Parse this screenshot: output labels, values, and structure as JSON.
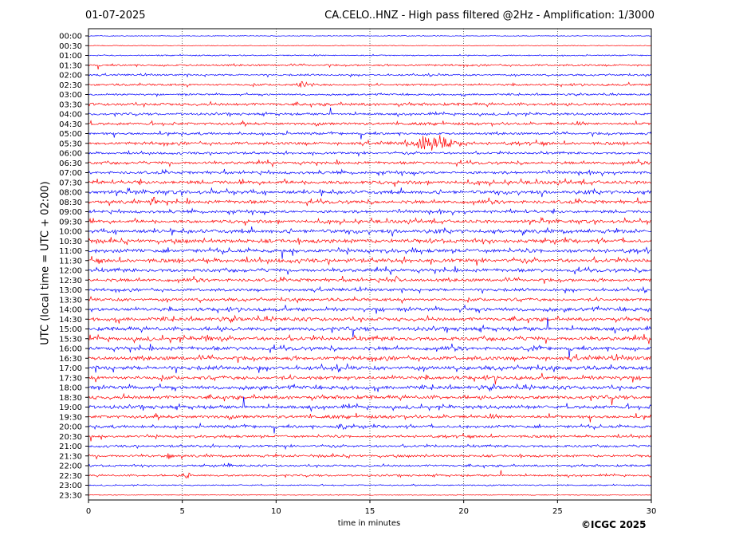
{
  "header": {
    "date": "01-07-2025",
    "title": "CA.CELO..HNZ - High pass filtered @2Hz - Amplification: 1/3000"
  },
  "footer": {
    "copyright": "©ICGC 2025"
  },
  "chart_data": {
    "type": "line",
    "title": "CA.CELO..HNZ - High pass filtered @2Hz - Amplification: 1/3000",
    "xlabel": "time in minutes",
    "ylabel": "UTC (local time = UTC + 02:00)",
    "xlim": [
      0,
      30
    ],
    "xticks": [
      0,
      5,
      10,
      15,
      20,
      25,
      30
    ],
    "grid": "vertical dotted at 5-minute ticks",
    "trace_colors": [
      "#0000ff",
      "#ff0000"
    ],
    "rows": [
      "00:00",
      "00:30",
      "01:00",
      "01:30",
      "02:00",
      "02:30",
      "03:00",
      "03:30",
      "04:00",
      "04:30",
      "05:00",
      "05:30",
      "06:00",
      "06:30",
      "07:00",
      "07:30",
      "08:00",
      "08:30",
      "09:00",
      "09:30",
      "10:00",
      "10:30",
      "11:00",
      "11:30",
      "12:00",
      "12:30",
      "13:00",
      "13:30",
      "14:00",
      "14:30",
      "15:00",
      "15:30",
      "16:00",
      "16:30",
      "17:00",
      "17:30",
      "18:00",
      "18:30",
      "19:00",
      "19:30",
      "20:00",
      "20:30",
      "21:00",
      "21:30",
      "22:00",
      "22:30",
      "23:00",
      "23:30"
    ],
    "activity": [
      0,
      0,
      0.15,
      0.35,
      0.3,
      0.4,
      0.3,
      0.6,
      0.45,
      0.55,
      0.5,
      0.65,
      0.45,
      0.6,
      0.6,
      0.75,
      0.8,
      0.75,
      0.6,
      0.7,
      0.85,
      0.9,
      0.85,
      0.9,
      0.75,
      0.7,
      0.6,
      0.65,
      0.8,
      0.8,
      0.85,
      0.9,
      0.85,
      0.9,
      0.9,
      0.85,
      0.8,
      0.8,
      0.75,
      0.7,
      0.6,
      0.5,
      0.45,
      0.5,
      0.4,
      0.35,
      0.15,
      0.05
    ],
    "events": [
      {
        "row": "05:30",
        "minute_start": 16.5,
        "minute_end": 20.2,
        "amplitude": 1.0
      },
      {
        "row": "02:30",
        "minute_start": 11.0,
        "minute_end": 12.0,
        "amplitude": 0.5
      },
      {
        "row": "15:30",
        "minute_start": 5.7,
        "minute_end": 6.9,
        "amplitude": 0.7
      },
      {
        "row": "16:00",
        "minute_start": 23.4,
        "minute_end": 24.0,
        "amplitude": 0.6
      },
      {
        "row": "08:30",
        "minute_start": 3.3,
        "minute_end": 3.7,
        "amplitude": 0.7
      },
      {
        "row": "12:30",
        "minute_start": 16.3,
        "minute_end": 16.6,
        "amplitude": 0.6
      },
      {
        "row": "20:00",
        "minute_start": 13.2,
        "minute_end": 14.0,
        "amplitude": 0.5
      },
      {
        "row": "21:30",
        "minute_start": 4.1,
        "minute_end": 4.5,
        "amplitude": 0.6
      },
      {
        "row": "22:00",
        "minute_start": 7.3,
        "minute_end": 7.8,
        "amplitude": 0.4
      },
      {
        "row": "22:30",
        "minute_start": 5.0,
        "minute_end": 5.5,
        "amplitude": 0.4
      },
      {
        "row": "14:00",
        "minute_start": 19.8,
        "minute_end": 20.3,
        "amplitude": 0.5
      }
    ]
  }
}
